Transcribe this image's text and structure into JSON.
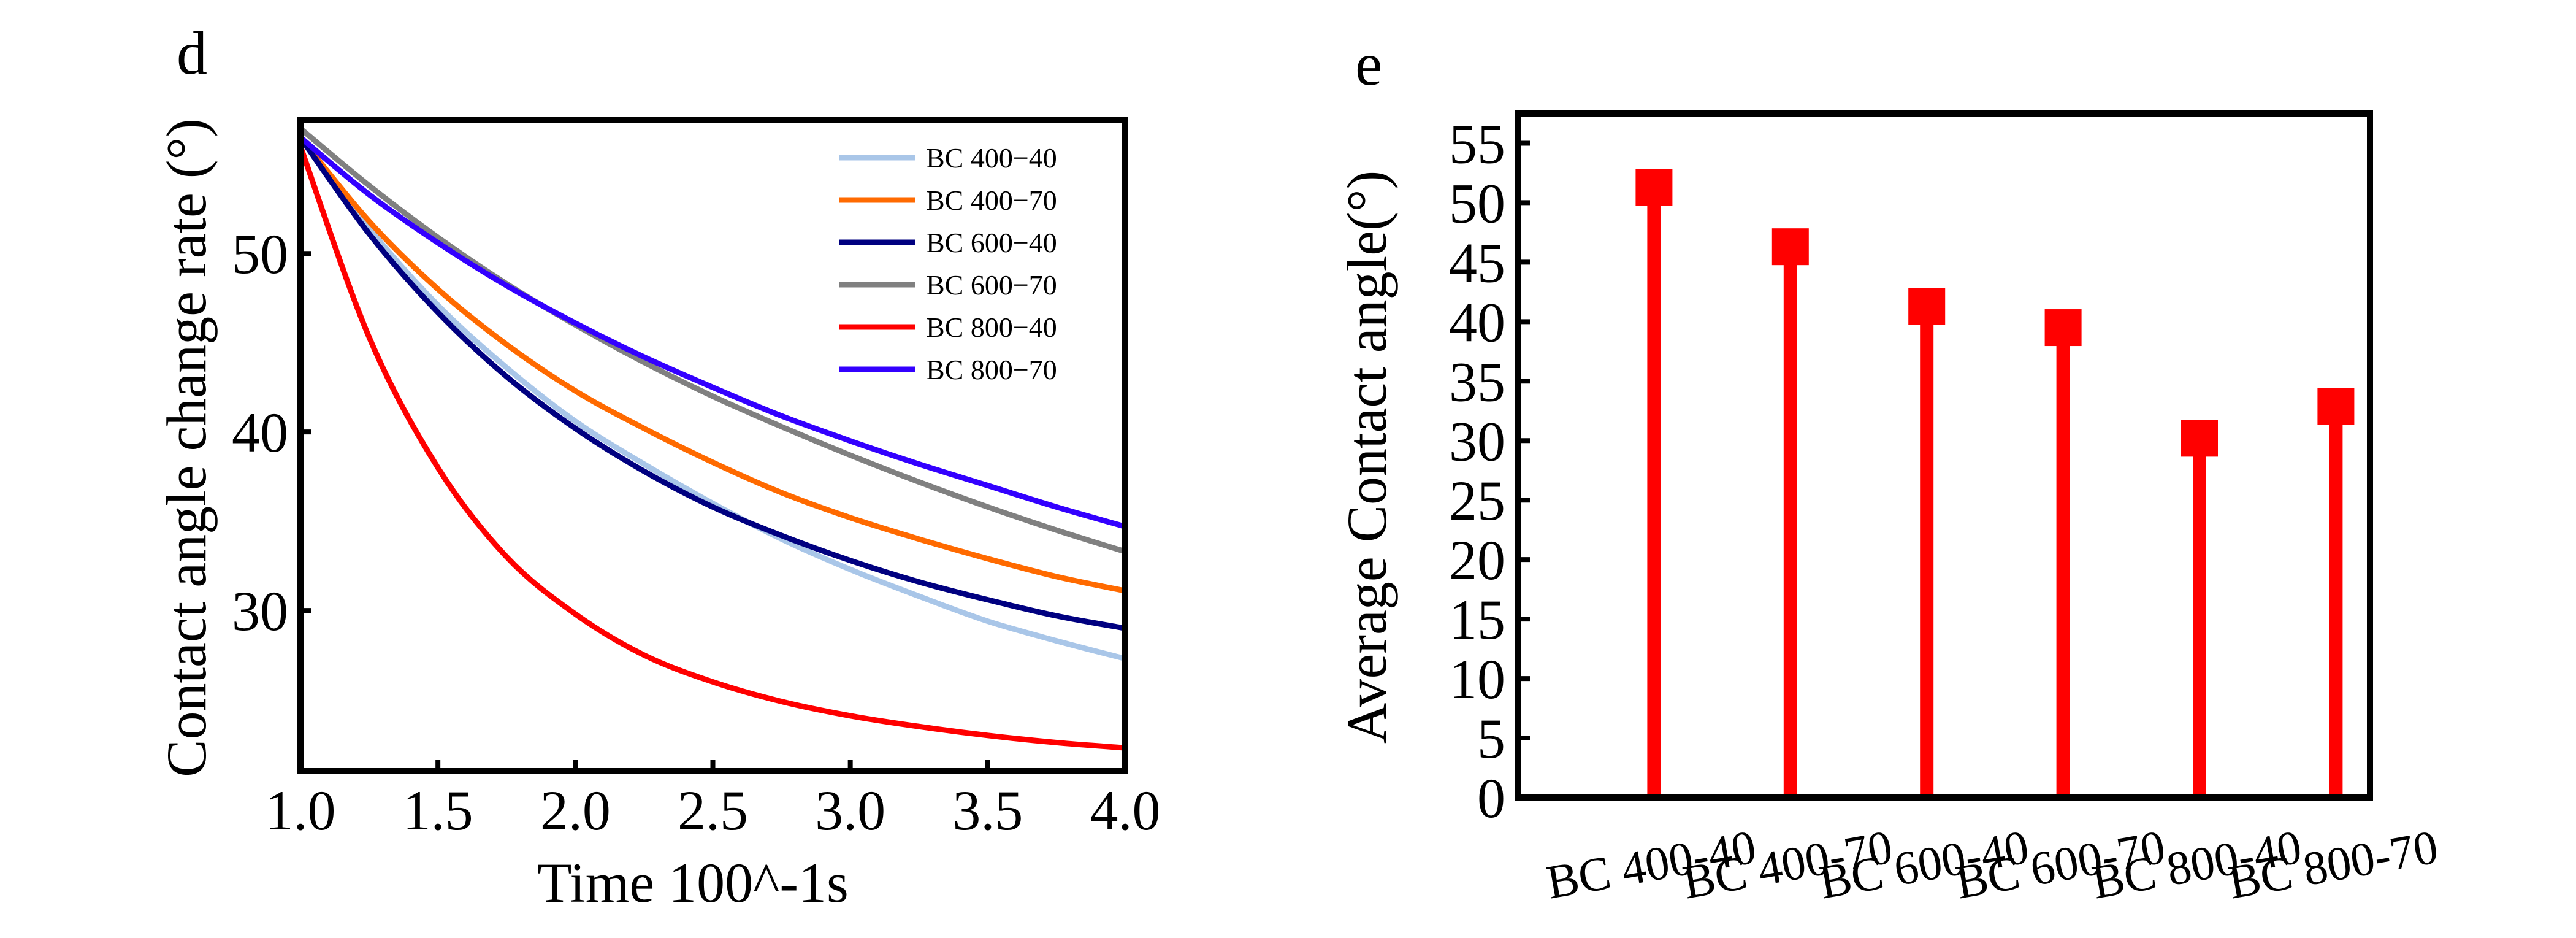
{
  "panels": [
    {
      "letter": "d",
      "chart_data": {
        "type": "line",
        "title": "",
        "xlabel": "Time 100^-1s",
        "ylabel": "Contact angle change rate (°)",
        "xlim": [
          1.0,
          4.0
        ],
        "ylim": [
          21,
          57.5
        ],
        "xticks": [
          1.0,
          1.5,
          2.0,
          2.5,
          3.0,
          3.5,
          4.0
        ],
        "xtick_labels": [
          "1.0",
          "1.5",
          "2.0",
          "2.5",
          "3.0",
          "3.5",
          "4.0"
        ],
        "yticks": [
          30,
          40,
          50
        ],
        "ytick_labels": [
          "30",
          "40",
          "50"
        ],
        "legend_position": "top-right",
        "x": [
          1.0,
          1.25,
          1.5,
          1.75,
          2.0,
          2.25,
          2.5,
          2.75,
          3.0,
          3.25,
          3.5,
          3.75,
          4.0
        ],
        "series": [
          {
            "name": "BC 400−40",
            "color": "#a9c6e8",
            "values": [
              56.5,
              51.4,
              47.1,
              43.6,
              40.6,
              38.2,
              36.0,
              34.0,
              32.3,
              30.8,
              29.4,
              28.3,
              27.3
            ]
          },
          {
            "name": "BC 400−70",
            "color": "#ff6a00",
            "values": [
              56.5,
              51.8,
              48.0,
              44.9,
              42.3,
              40.2,
              38.3,
              36.6,
              35.2,
              34.0,
              32.9,
              31.9,
              31.1
            ]
          },
          {
            "name": "BC 600−40",
            "color": "#000080",
            "values": [
              56.5,
              51.1,
              46.7,
              43.1,
              40.2,
              37.8,
              35.8,
              34.2,
              32.8,
              31.6,
              30.6,
              29.7,
              29.0
            ]
          },
          {
            "name": "BC 600−70",
            "color": "#808080",
            "values": [
              57.0,
              53.8,
              50.9,
              48.3,
              46.0,
              43.9,
              42.0,
              40.3,
              38.7,
              37.2,
              35.8,
              34.5,
              33.3
            ]
          },
          {
            "name": "BC 800−40",
            "color": "#ff0000",
            "values": [
              56.0,
              45.3,
              38.0,
              33.0,
              29.8,
              27.5,
              26.0,
              24.9,
              24.1,
              23.5,
              23.0,
              22.6,
              22.3
            ]
          },
          {
            "name": "BC 800−70",
            "color": "#3300ff",
            "values": [
              56.5,
              53.3,
              50.6,
              48.2,
              46.1,
              44.2,
              42.5,
              40.9,
              39.5,
              38.2,
              37.0,
              35.8,
              34.7
            ]
          }
        ]
      }
    },
    {
      "letter": "e",
      "chart_data": {
        "type": "bar",
        "title": "",
        "xlabel": "",
        "ylabel": "Average Contact angle(°)",
        "ylim": [
          0,
          57.5
        ],
        "yticks": [
          0,
          5,
          10,
          15,
          20,
          25,
          30,
          35,
          40,
          45,
          50,
          55
        ],
        "ytick_labels": [
          "0",
          "5",
          "10",
          "15",
          "20",
          "25",
          "30",
          "35",
          "40",
          "45",
          "50",
          "55"
        ],
        "categories": [
          "BC 400-40",
          "BC 400-70",
          "BC 600-40",
          "BC 600-70",
          "BC 800-40",
          "BC 800-70"
        ],
        "values": [
          51.3,
          46.3,
          41.3,
          39.5,
          30.2,
          32.9
        ],
        "color": "#ff0000",
        "style": "lollipop-square"
      }
    }
  ]
}
